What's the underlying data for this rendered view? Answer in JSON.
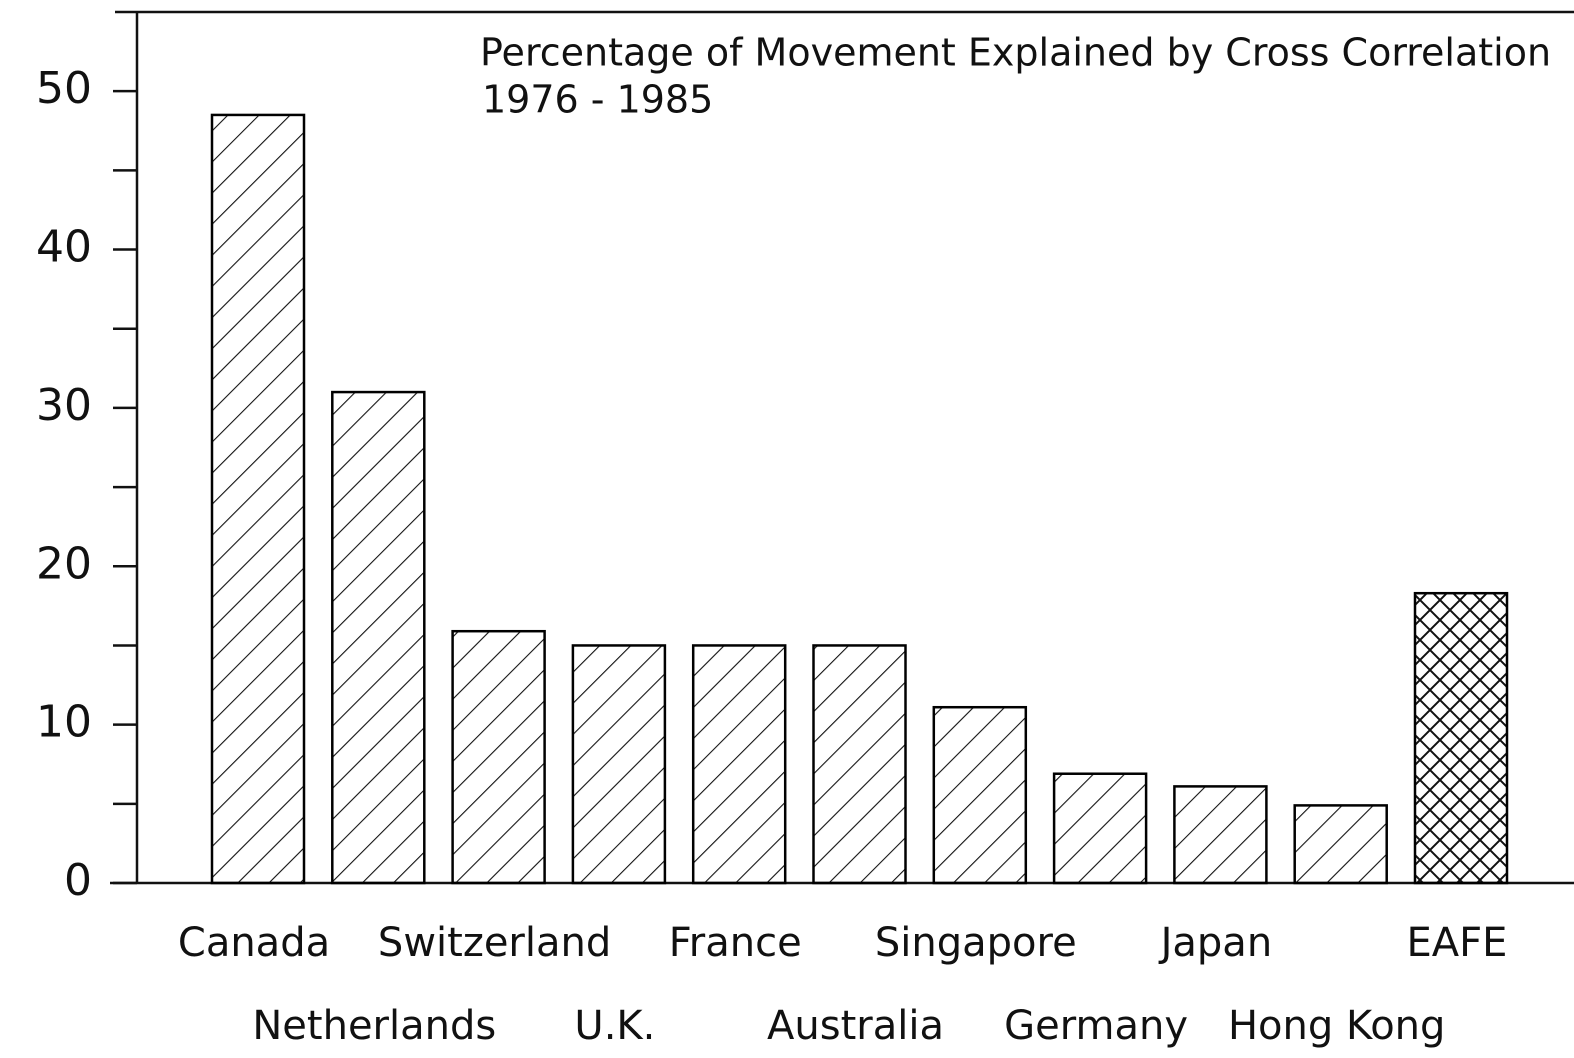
{
  "chart_data": {
    "type": "bar",
    "title": "Percentage of Movement Explained by Cross Correlation",
    "subtitle": "1976 - 1985",
    "categories": [
      "Canada",
      "Netherlands",
      "Switzerland",
      "U.K.",
      "France",
      "Australia",
      "Singapore",
      "Germany",
      "Japan",
      "Hong Kong",
      "EAFE"
    ],
    "values": [
      48.5,
      31.0,
      15.9,
      15.0,
      15.0,
      15.0,
      11.1,
      6.9,
      6.1,
      4.9,
      18.3
    ],
    "hatch": [
      "diagonal",
      "diagonal",
      "diagonal",
      "diagonal",
      "diagonal",
      "diagonal",
      "diagonal",
      "diagonal",
      "diagonal",
      "diagonal",
      "cross"
    ],
    "color": "#000000",
    "ylim": [
      0,
      55
    ],
    "yticks": [
      0,
      10,
      20,
      30,
      40,
      50
    ],
    "yminor_ticks": [
      5,
      15,
      25,
      35,
      45
    ],
    "grid": false
  }
}
